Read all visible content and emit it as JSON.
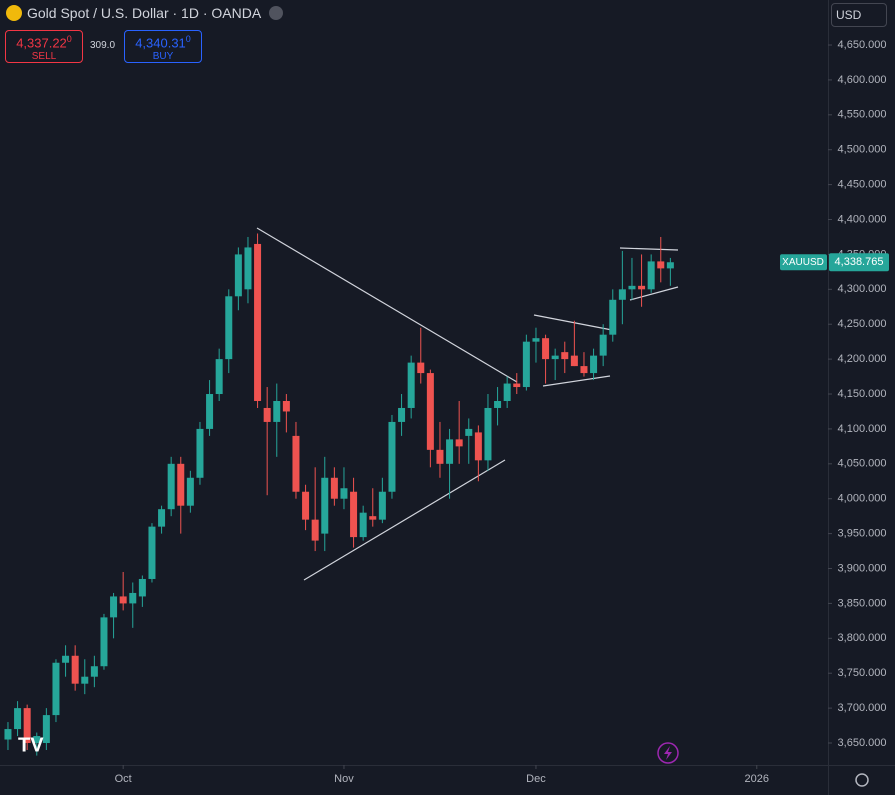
{
  "chart_data": {
    "type": "candlestick",
    "title": "Gold Spot / U.S. Dollar · 1D · OANDA",
    "sell": {
      "price": "4,337.22",
      "pip": "0",
      "label": "SELL"
    },
    "spread": "309.0",
    "buy": {
      "price": "4,340.31",
      "pip": "0",
      "label": "BUY"
    },
    "currency": "USD",
    "symbol": "XAUUSD",
    "last_price": {
      "value": 4338.765,
      "label": "4,338.765"
    },
    "up_color": "#26a69a",
    "down_color": "#ef5350",
    "open": [
      3655,
      3670,
      3700,
      3650,
      3650,
      3690,
      3765,
      3775,
      3735,
      3745,
      3760,
      3830,
      3860,
      3850,
      3860,
      3885,
      3960,
      3985,
      4050,
      3990,
      4030,
      4100,
      4150,
      4200,
      4290,
      4300,
      4365,
      4130,
      4110,
      4140,
      4090,
      4010,
      3970,
      3950,
      4030,
      4000,
      4010,
      3945,
      3975,
      3970,
      4010,
      4110,
      4130,
      4195,
      4180,
      4070,
      4050,
      4085,
      4090,
      4095,
      4055,
      4130,
      4140,
      4165,
      4160,
      4225,
      4230,
      4200,
      4210,
      4205,
      4190,
      4180,
      4205,
      4235,
      4285,
      4300,
      4305,
      4300,
      4340,
      4330
    ],
    "high": [
      3680,
      3710,
      3705,
      3665,
      3700,
      3770,
      3790,
      3790,
      3770,
      3775,
      3835,
      3865,
      3895,
      3880,
      3890,
      3965,
      3990,
      4060,
      4060,
      4040,
      4110,
      4170,
      4215,
      4300,
      4360,
      4375,
      4380,
      4160,
      4165,
      4150,
      4110,
      4020,
      4045,
      4060,
      4045,
      4045,
      4030,
      3990,
      4015,
      4030,
      4120,
      4150,
      4205,
      4245,
      4185,
      4110,
      4100,
      4140,
      4115,
      4105,
      4150,
      4160,
      4175,
      4180,
      4235,
      4245,
      4235,
      4215,
      4225,
      4255,
      4210,
      4215,
      4250,
      4300,
      4355,
      4345,
      4350,
      4350,
      4375,
      4345
    ],
    "low": [
      3640,
      3660,
      3640,
      3632,
      3640,
      3680,
      3745,
      3725,
      3720,
      3730,
      3755,
      3800,
      3840,
      3815,
      3845,
      3880,
      3950,
      3975,
      3950,
      3980,
      4020,
      4090,
      4140,
      4180,
      4270,
      4280,
      4130,
      4005,
      4060,
      4095,
      4000,
      3955,
      3925,
      3925,
      3990,
      3985,
      3930,
      3940,
      3960,
      3965,
      4000,
      4090,
      4115,
      4165,
      4045,
      4030,
      4000,
      4050,
      4050,
      4025,
      4040,
      4105,
      4130,
      4150,
      4155,
      4195,
      4165,
      4170,
      4180,
      4190,
      4175,
      4170,
      4190,
      4225,
      4250,
      4285,
      4275,
      4295,
      4310,
      4305
    ],
    "close": [
      3670,
      3700,
      3650,
      3660,
      3690,
      3765,
      3775,
      3735,
      3745,
      3760,
      3830,
      3860,
      3850,
      3865,
      3885,
      3960,
      3985,
      4050,
      3990,
      4030,
      4100,
      4150,
      4200,
      4290,
      4350,
      4360,
      4140,
      4110,
      4140,
      4125,
      4010,
      3970,
      3940,
      4030,
      4000,
      4015,
      3945,
      3980,
      3970,
      4010,
      4110,
      4130,
      4195,
      4180,
      4070,
      4050,
      4085,
      4075,
      4100,
      4055,
      4130,
      4140,
      4165,
      4160,
      4225,
      4230,
      4200,
      4205,
      4200,
      4190,
      4180,
      4205,
      4235,
      4285,
      4300,
      4305,
      4300,
      4340,
      4330,
      4338.765
    ],
    "xlim": [
      -0.83,
      85.42
    ],
    "xticks": [
      {
        "value": 12,
        "label": "Oct"
      },
      {
        "value": 35,
        "label": "Nov"
      },
      {
        "value": 55,
        "label": "Dec"
      },
      {
        "value": 78,
        "label": "2026"
      }
    ],
    "ylim": [
      3618.5,
      4714.5
    ],
    "yticks": [
      {
        "value": 3650,
        "label": "3,650.000"
      },
      {
        "value": 3700,
        "label": "3,700.000"
      },
      {
        "value": 3750,
        "label": "3,750.000"
      },
      {
        "value": 3800,
        "label": "3,800.000"
      },
      {
        "value": 3850,
        "label": "3,850.000"
      },
      {
        "value": 3900,
        "label": "3,900.000"
      },
      {
        "value": 3950,
        "label": "3,950.000"
      },
      {
        "value": 4000,
        "label": "4,000.000"
      },
      {
        "value": 4050,
        "label": "4,050.000"
      },
      {
        "value": 4100,
        "label": "4,100.000"
      },
      {
        "value": 4150,
        "label": "4,150.000"
      },
      {
        "value": 4200,
        "label": "4,200.000"
      },
      {
        "value": 4250,
        "label": "4,250.000"
      },
      {
        "value": 4300,
        "label": "4,300.000"
      },
      {
        "value": 4350,
        "label": "4,350.000"
      },
      {
        "value": 4400,
        "label": "4,400.000"
      },
      {
        "value": 4450,
        "label": "4,450.000"
      },
      {
        "value": 4500,
        "label": "4,500.000"
      },
      {
        "value": 4550,
        "label": "4,550.000"
      },
      {
        "value": 4600,
        "label": "4,600.000"
      },
      {
        "value": 4650,
        "label": "4,650.000"
      }
    ]
  }
}
